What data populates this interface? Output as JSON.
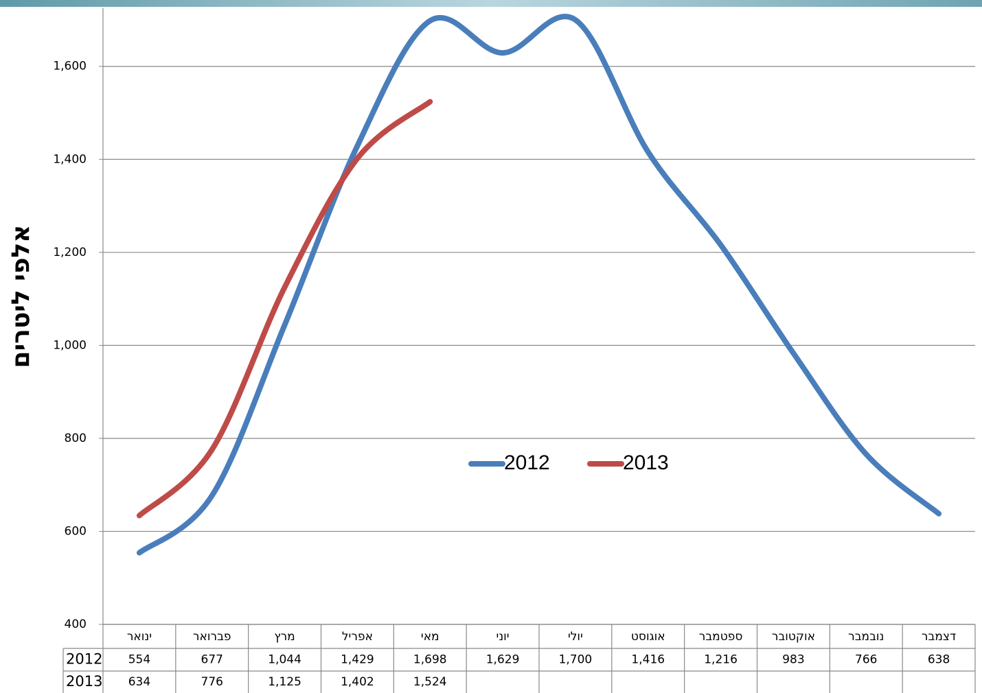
{
  "chart_data": {
    "type": "line",
    "y_axis_label": "אלפי ליטרים",
    "categories": [
      "ינואר",
      "פברואר",
      "מרץ",
      "אפריל",
      "מאי",
      "יוני",
      "יולי",
      "אוגוסט",
      "ספטמבר",
      "אוקטובר",
      "נובמבר",
      "דצמבר"
    ],
    "series": [
      {
        "name": "2012",
        "color": "#4a7ebb",
        "values": [
          554,
          677,
          1044,
          1429,
          1698,
          1629,
          1700,
          1416,
          1216,
          983,
          766,
          638
        ],
        "value_labels": [
          "554",
          "677",
          "1,044",
          "1,429",
          "1,698",
          "1,629",
          "1,700",
          "1,416",
          "1,216",
          "983",
          "766",
          "638"
        ]
      },
      {
        "name": "2013",
        "color": "#be4b48",
        "values": [
          634,
          776,
          1125,
          1402,
          1524,
          null,
          null,
          null,
          null,
          null,
          null,
          null
        ],
        "value_labels": [
          "634",
          "776",
          "1,125",
          "1,402",
          "1,524",
          null,
          null,
          null,
          null,
          null,
          null,
          null
        ]
      }
    ],
    "ylim": [
      400,
      1725
    ],
    "yticks": [
      400,
      600,
      800,
      {
        "value": 1000,
        "label": "1,000"
      },
      {
        "value": 1200,
        "label": "1,200"
      },
      {
        "value": 1400,
        "label": "1,400"
      },
      {
        "value": 1600,
        "label": "1,600"
      }
    ],
    "grid": true,
    "smooth": true,
    "legend": "center"
  }
}
